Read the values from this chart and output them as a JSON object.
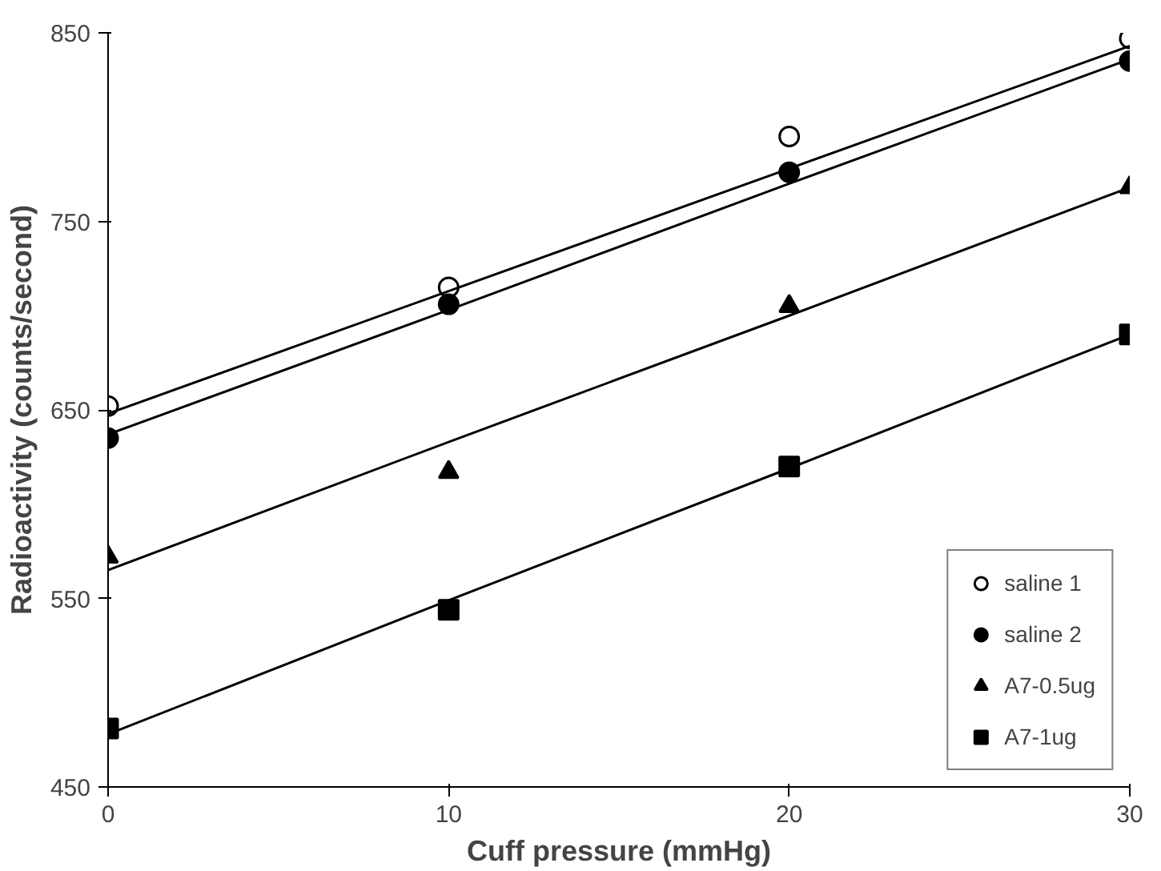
{
  "chart_data": {
    "type": "scatter",
    "xlabel": "Cuff pressure (mmHg)",
    "ylabel": "Radioactivity (counts/second)",
    "x": [
      0,
      10,
      20,
      30
    ],
    "xlim": [
      0,
      30
    ],
    "xticks": [
      0,
      10,
      20,
      30
    ],
    "ylim": [
      450,
      850
    ],
    "yticks": [
      450,
      550,
      650,
      750,
      850
    ],
    "grid": false,
    "legend": "bottom right",
    "series": [
      {
        "name": "saline 1",
        "color": "#ffffff",
        "marker": "circle",
        "values": [
          652,
          715,
          795,
          847
        ]
      },
      {
        "name": "saline 2",
        "color": "#000000",
        "marker": "circle",
        "values": [
          635,
          706,
          776,
          835
        ]
      },
      {
        "name": "A7-0.5ug",
        "color": "#000000",
        "marker": "triangle",
        "values": [
          572,
          617,
          705,
          768
        ]
      },
      {
        "name": "A7-1ug",
        "color": "#000000",
        "marker": "square",
        "values": [
          481,
          544,
          620,
          690
        ]
      },
      {
        "type": "line",
        "color": "#000000",
        "values": [
          648,
          713,
          778,
          843
        ]
      },
      {
        "type": "line",
        "color": "#000000",
        "values": [
          637,
          703,
          770,
          836
        ]
      },
      {
        "type": "line",
        "color": "#000000",
        "values": [
          565,
          633,
          700,
          768
        ]
      },
      {
        "type": "line",
        "color": "#000000",
        "values": [
          478,
          549,
          619,
          690
        ]
      }
    ]
  }
}
